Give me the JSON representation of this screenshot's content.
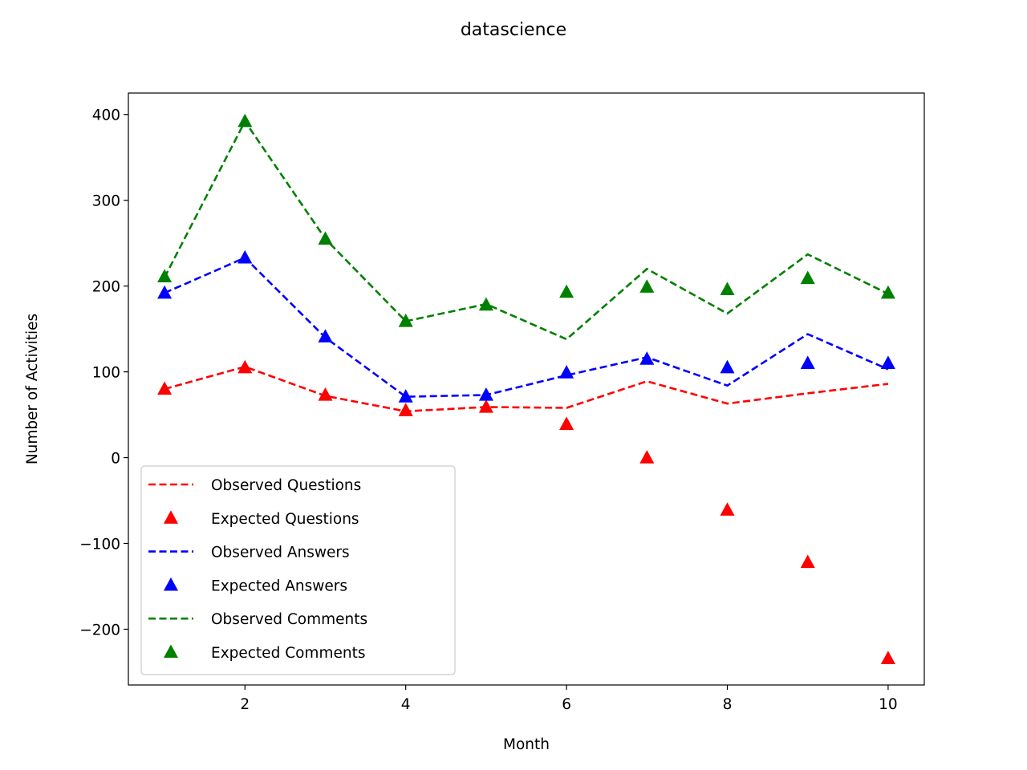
{
  "chart_data": {
    "type": "line",
    "title": "datascience",
    "xlabel": "Month",
    "ylabel": "Number of Activities",
    "xlim": [
      0.55,
      10.45
    ],
    "ylim": [
      -265,
      425
    ],
    "xticks": [
      2,
      4,
      6,
      8,
      10
    ],
    "xtick_labels": [
      "2",
      "4",
      "6",
      "8",
      "10"
    ],
    "yticks": [
      -200,
      -100,
      0,
      100,
      200,
      300,
      400
    ],
    "ytick_labels": [
      "−200",
      "−100",
      "0",
      "100",
      "200",
      "300",
      "400"
    ],
    "x": [
      1,
      2,
      3,
      4,
      5,
      6,
      7,
      8,
      9,
      10
    ],
    "grid": false,
    "legend_position": "lower-left",
    "series": [
      {
        "name": "Observed Questions",
        "style": "dashed-line",
        "color": "#ff0000",
        "values": [
          80,
          106,
          72,
          54,
          59,
          58,
          89,
          63,
          75,
          86
        ]
      },
      {
        "name": "Expected Questions",
        "style": "triangle-marker",
        "color": "#ff0000",
        "values": [
          80,
          105,
          73,
          55,
          59,
          39,
          0,
          -61,
          -122,
          -234
        ]
      },
      {
        "name": "Observed Answers",
        "style": "dashed-line",
        "color": "#0000ff",
        "values": [
          192,
          233,
          140,
          71,
          73,
          96,
          117,
          84,
          144,
          103
        ]
      },
      {
        "name": "Expected Answers",
        "style": "triangle-marker",
        "color": "#0000ff",
        "values": [
          192,
          233,
          141,
          71,
          73,
          99,
          115,
          105,
          110,
          110
        ]
      },
      {
        "name": "Observed Comments",
        "style": "dashed-line",
        "color": "#008000",
        "values": [
          210,
          392,
          255,
          159,
          179,
          138,
          220,
          168,
          237,
          191
        ]
      },
      {
        "name": "Expected Comments",
        "style": "triangle-marker",
        "color": "#008000",
        "values": [
          211,
          392,
          255,
          159,
          178,
          193,
          199,
          196,
          209,
          192
        ]
      }
    ]
  }
}
